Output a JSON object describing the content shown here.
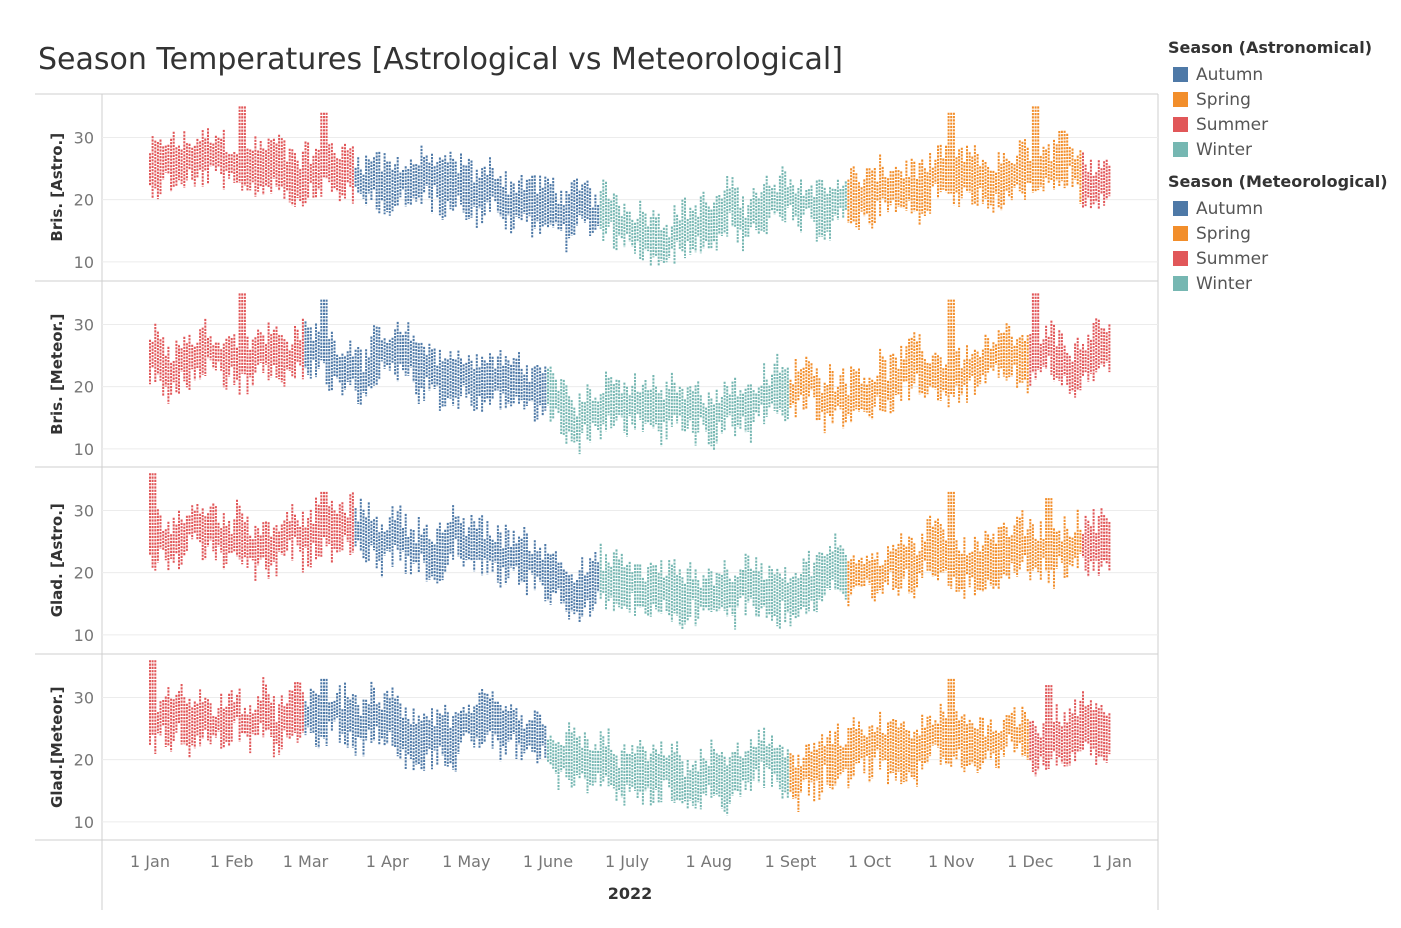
{
  "title": "Season Temperatures [Astrological vs Meteorological]",
  "colors": {
    "Autumn": "#4e79a7",
    "Spring": "#f28e2b",
    "Summer": "#e15759",
    "Winter": "#76b7b2"
  },
  "legend": [
    {
      "title": "Season (Astronomical)",
      "items": [
        "Autumn",
        "Spring",
        "Summer",
        "Winter"
      ]
    },
    {
      "title": "Season (Meteorological)",
      "items": [
        "Autumn",
        "Spring",
        "Summer",
        "Winter"
      ]
    }
  ],
  "chart_data": {
    "type": "scatter",
    "title": "Season Temperatures [Astrological vs Meteorological]",
    "xlabel": "2022",
    "x_ticks": [
      "1 Jan",
      "1 Feb",
      "1 Mar",
      "1 Apr",
      "1 May",
      "1 June",
      "1 July",
      "1 Aug",
      "1 Sept",
      "1 Oct",
      "1 Nov",
      "1 Dec",
      "1 Jan"
    ],
    "y_ticks": [
      10,
      20,
      30
    ],
    "ylim": [
      7,
      37
    ],
    "grid": true,
    "legend_position": "right",
    "panels": [
      {
        "label": "Bris. [Astro.]",
        "season_breaks": [
          {
            "start": "1 Jan",
            "season": "Summer"
          },
          {
            "start": "20 Mar",
            "season": "Autumn"
          },
          {
            "start": "21 June",
            "season": "Winter"
          },
          {
            "start": "23 Sept",
            "season": "Spring"
          },
          {
            "start": "21 Dec",
            "season": "Summer"
          }
        ],
        "monthly_mean_temp": [
          25.5,
          25.5,
          24.5,
          22.5,
          20.5,
          16.5,
          15.5,
          17.5,
          19.5,
          21.5,
          22.5,
          23.5
        ],
        "peaks": [
          {
            "date": "5 Feb",
            "value": 35
          },
          {
            "date": "8 Mar",
            "value": 34
          },
          {
            "date": "1 Nov",
            "value": 34
          },
          {
            "date": "3 Dec",
            "value": 35
          }
        ]
      },
      {
        "label": "Bris. [Meteor.]",
        "season_breaks": [
          {
            "start": "1 Jan",
            "season": "Summer"
          },
          {
            "start": "1 Mar",
            "season": "Autumn"
          },
          {
            "start": "1 June",
            "season": "Winter"
          },
          {
            "start": "1 Sept",
            "season": "Spring"
          },
          {
            "start": "1 Dec",
            "season": "Summer"
          }
        ],
        "monthly_mean_temp": [
          25.5,
          25.5,
          24.5,
          22.5,
          20.5,
          16.5,
          15.5,
          17.5,
          19.5,
          21.5,
          22.5,
          23.5
        ],
        "peaks": [
          {
            "date": "5 Feb",
            "value": 35
          },
          {
            "date": "8 Mar",
            "value": 34
          },
          {
            "date": "1 Nov",
            "value": 34
          },
          {
            "date": "3 Dec",
            "value": 35
          }
        ]
      },
      {
        "label": "Glad. [Astro.]",
        "season_breaks": [
          {
            "start": "1 Jan",
            "season": "Summer"
          },
          {
            "start": "20 Mar",
            "season": "Autumn"
          },
          {
            "start": "21 June",
            "season": "Winter"
          },
          {
            "start": "23 Sept",
            "season": "Spring"
          },
          {
            "start": "21 Dec",
            "season": "Summer"
          }
        ],
        "monthly_mean_temp": [
          26.5,
          25.5,
          26.5,
          24.5,
          22.5,
          18.5,
          16.5,
          17.5,
          19.5,
          21.5,
          23.5,
          24.5
        ],
        "peaks": [
          {
            "date": "2 Jan",
            "value": 36
          },
          {
            "date": "8 Mar",
            "value": 33
          },
          {
            "date": "1 Nov",
            "value": 33
          },
          {
            "date": "8 Dec",
            "value": 32
          }
        ]
      },
      {
        "label": "Glad.[Meteor.]",
        "season_breaks": [
          {
            "start": "1 Jan",
            "season": "Summer"
          },
          {
            "start": "1 Mar",
            "season": "Autumn"
          },
          {
            "start": "1 June",
            "season": "Winter"
          },
          {
            "start": "1 Sept",
            "season": "Spring"
          },
          {
            "start": "1 Dec",
            "season": "Summer"
          }
        ],
        "monthly_mean_temp": [
          26.5,
          25.5,
          26.5,
          24.5,
          22.5,
          18.5,
          16.5,
          17.5,
          19.5,
          21.5,
          23.5,
          24.5
        ],
        "peaks": [
          {
            "date": "2 Jan",
            "value": 36
          },
          {
            "date": "8 Mar",
            "value": 33
          },
          {
            "date": "1 Nov",
            "value": 33
          },
          {
            "date": "8 Dec",
            "value": 32
          }
        ]
      }
    ]
  }
}
